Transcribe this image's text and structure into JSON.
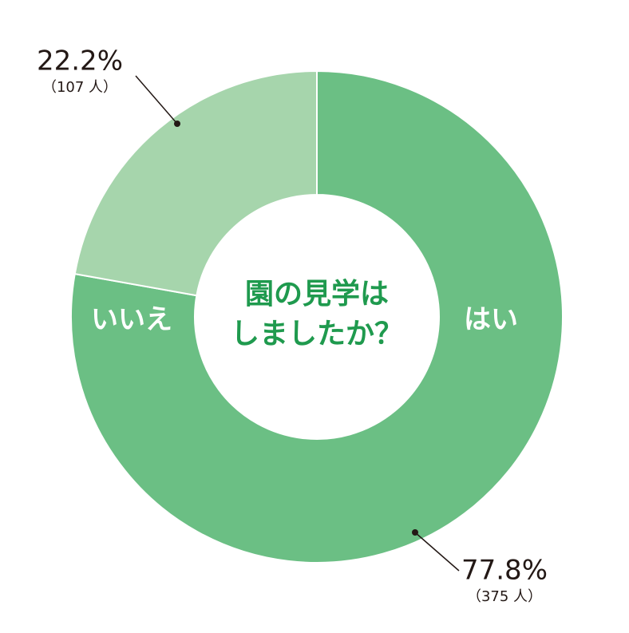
{
  "chart_data": {
    "type": "donut",
    "title": [
      "園の見学は",
      "しましたか？"
    ],
    "categories": [
      "はい",
      "いいえ"
    ],
    "values": [
      77.8,
      22.2
    ],
    "value_labels": [
      "77.8%",
      "22.2%"
    ],
    "counts": [
      375,
      107
    ],
    "count_labels": [
      "（375 人）",
      "（107 人）"
    ],
    "colors": [
      "#6bbf84",
      "#a6d5ac"
    ]
  }
}
